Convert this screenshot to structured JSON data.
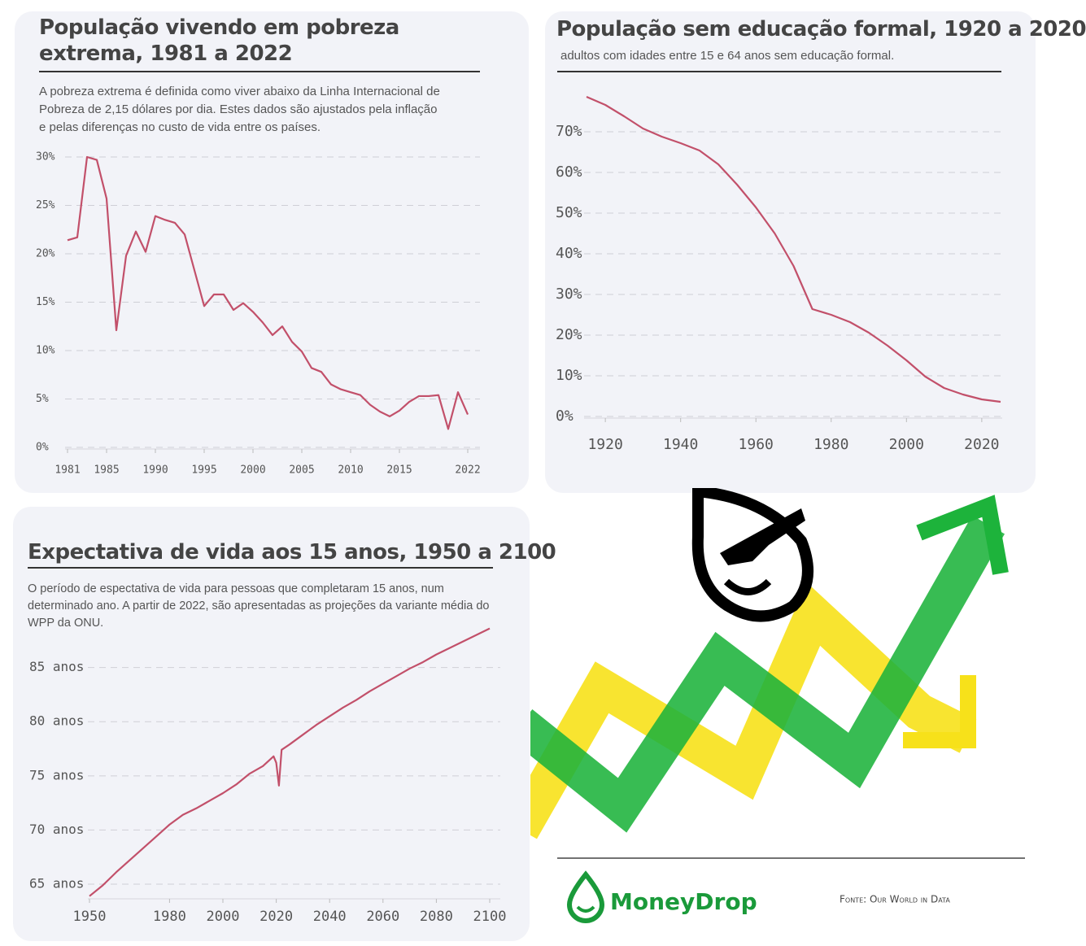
{
  "chart_data": [
    {
      "type": "line",
      "title": "População vivendo em pobreza extrema, 1981 a 2022",
      "subtitle": "A pobreza extrema é definida como viver abaixo da Linha Internacional de Pobreza de 2,15 dólares por dia. Estes dados são ajustados pela inflação e pelas diferenças no custo de vida entre os países.",
      "x": [
        1981,
        1982,
        1983,
        1984,
        1985,
        1986,
        1987,
        1988,
        1989,
        1990,
        1991,
        1992,
        1993,
        1994,
        1995,
        1996,
        1997,
        1998,
        1999,
        2000,
        2001,
        2002,
        2003,
        2004,
        2005,
        2006,
        2007,
        2008,
        2009,
        2010,
        2011,
        2012,
        2013,
        2014,
        2015,
        2016,
        2017,
        2018,
        2019,
        2020,
        2021,
        2022
      ],
      "values": [
        21.4,
        21.7,
        30,
        29.7,
        25.7,
        12.1,
        19.8,
        22.3,
        20.2,
        23.9,
        23.5,
        23.2,
        22.0,
        18.3,
        14.6,
        15.8,
        15.8,
        14.2,
        14.9,
        14.0,
        12.9,
        11.6,
        12.5,
        10.9,
        9.9,
        8.2,
        7.8,
        6.5,
        6.0,
        5.7,
        5.4,
        4.4,
        3.7,
        3.2,
        3.8,
        4.7,
        5.3,
        5.3,
        5.4,
        1.9,
        5.7,
        3.4
      ],
      "color": "#c2506a",
      "xlim": [
        1981,
        2022
      ],
      "xticks": [
        1981,
        1985,
        1990,
        1995,
        2000,
        2005,
        2010,
        2015,
        2022
      ],
      "ylim": [
        0,
        30
      ],
      "yticks": [
        {
          "value": 0,
          "label": "0%"
        },
        {
          "value": 5,
          "label": "5%"
        },
        {
          "value": 10,
          "label": "10%"
        },
        {
          "value": 15,
          "label": "15%"
        },
        {
          "value": 20,
          "label": "20%"
        },
        {
          "value": 25,
          "label": "25%"
        },
        {
          "value": 30,
          "label": "30%"
        }
      ],
      "grid": true
    },
    {
      "type": "line",
      "title": "População sem educação formal, 1920 a 2020",
      "subtitle": "adultos com idades entre 15 e 64 anos sem educação formal.",
      "x": [
        1915,
        1920,
        1925,
        1930,
        1935,
        1940,
        1945,
        1950,
        1955,
        1960,
        1965,
        1970,
        1975,
        1980,
        1985,
        1990,
        1995,
        2000,
        2005,
        2010,
        2015,
        2020,
        2025
      ],
      "values": [
        78.6,
        76.6,
        73.8,
        70.8,
        68.8,
        67.2,
        65.4,
        62,
        57,
        51.4,
        45,
        37,
        26.4,
        25,
        23.2,
        20.6,
        17.4,
        13.8,
        9.8,
        7,
        5.4,
        4.2,
        3.6
      ],
      "color": "#c2506a",
      "xlim": [
        1915,
        2025
      ],
      "xticks": [
        1920,
        1940,
        1960,
        1980,
        2000,
        2020
      ],
      "ylim": [
        0,
        80
      ],
      "yticks": [
        {
          "value": 0,
          "label": "0%"
        },
        {
          "value": 10,
          "label": "10%"
        },
        {
          "value": 20,
          "label": "20%"
        },
        {
          "value": 30,
          "label": "30%"
        },
        {
          "value": 40,
          "label": "40%"
        },
        {
          "value": 50,
          "label": "50%"
        },
        {
          "value": 60,
          "label": "60%"
        },
        {
          "value": 70,
          "label": "70%"
        }
      ],
      "grid": true
    },
    {
      "type": "line",
      "title": "Expectativa de vida aos 15 anos, 1950 a 2100",
      "subtitle": "O período de espectativa de vida para pessoas que completaram 15 anos, num determinado ano. A partir de 2022, são apresentadas as projeções da variante média do WPP da ONU.",
      "x": [
        1950,
        1955,
        1960,
        1965,
        1970,
        1975,
        1980,
        1985,
        1990,
        1995,
        2000,
        2005,
        2010,
        2015,
        2019,
        2020,
        2021,
        2022,
        2025,
        2030,
        2035,
        2040,
        2045,
        2050,
        2055,
        2060,
        2065,
        2070,
        2075,
        2080,
        2085,
        2090,
        2095,
        2100
      ],
      "values": [
        63.9,
        64.9,
        66.1,
        67.2,
        68.3,
        69.4,
        70.5,
        71.4,
        72.0,
        72.7,
        73.4,
        74.2,
        75.2,
        75.9,
        76.8,
        76.2,
        74.1,
        77.4,
        77.9,
        78.8,
        79.7,
        80.5,
        81.3,
        82.0,
        82.8,
        83.5,
        84.2,
        84.9,
        85.5,
        86.2,
        86.8,
        87.4,
        88.0,
        88.6
      ],
      "color": "#c2506a",
      "xlim": [
        1950,
        2100
      ],
      "xticks": [
        1950,
        1980,
        2000,
        2020,
        2040,
        2060,
        2080,
        2100
      ],
      "ylim": [
        63.8,
        88.8
      ],
      "yticks": [
        {
          "value": 65,
          "label": "65 anos"
        },
        {
          "value": 70,
          "label": "70 anos"
        },
        {
          "value": 75,
          "label": "75 anos"
        },
        {
          "value": 80,
          "label": "80 anos"
        },
        {
          "value": 85,
          "label": "85 anos"
        }
      ],
      "grid": true
    }
  ],
  "brand": "MoneyDrop",
  "source": "Fonte: Our World in Data"
}
